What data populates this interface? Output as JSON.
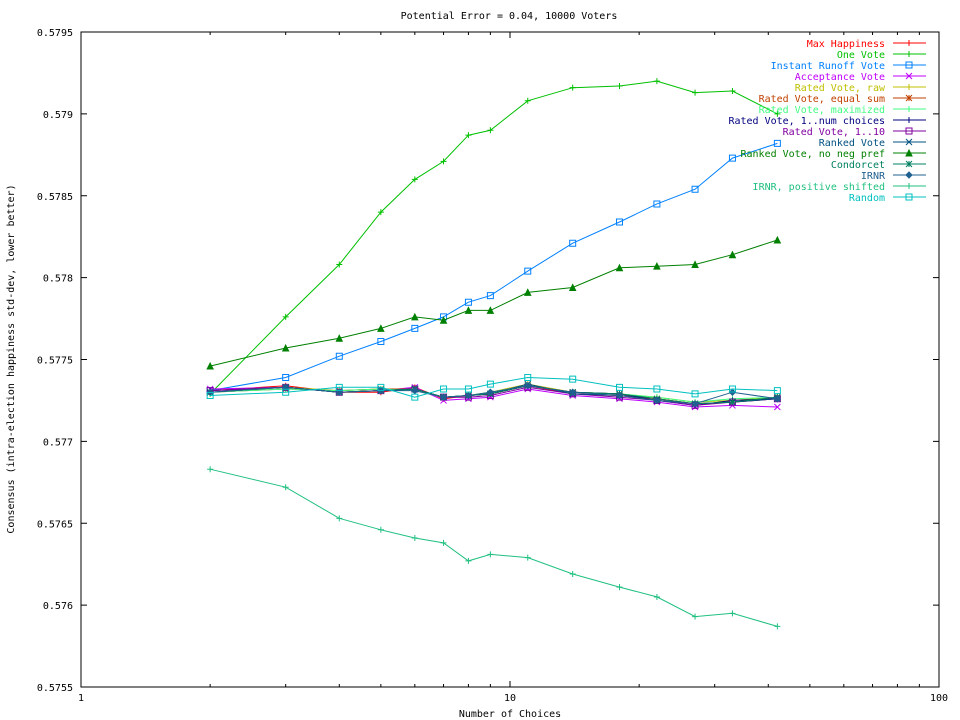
{
  "chart_data": {
    "type": "line",
    "title": "Potential Error = 0.04, 10000 Voters",
    "xlabel": "Number of Choices",
    "ylabel": "Consensus (intra-election happiness std-dev, lower better)",
    "xscale": "log",
    "xlim": [
      1,
      100
    ],
    "ylim": [
      0.5755,
      0.5795
    ],
    "x_ticks": [
      1,
      10,
      100
    ],
    "y_ticks": [
      0.5755,
      0.576,
      0.5765,
      0.577,
      0.5775,
      0.578,
      0.5785,
      0.579,
      0.5795
    ],
    "y_tick_labels": [
      "0.5755",
      "0.576",
      "0.5765",
      "0.577",
      "0.5775",
      "0.578",
      "0.5785",
      "0.579",
      "0.5795"
    ],
    "x_tick_labels": [
      "1",
      "10",
      "100"
    ],
    "grid": false,
    "legend_position": "top-right",
    "x": [
      2,
      3,
      4,
      5,
      6,
      7,
      8,
      9,
      11,
      14,
      18,
      22,
      27,
      33,
      42
    ],
    "series": [
      {
        "name": "Max Happiness",
        "color": "#ff0000",
        "marker": "plus",
        "values": [
          0.57731,
          0.57734,
          0.5773,
          0.5773,
          0.57733,
          0.57726,
          0.57728,
          0.57729,
          0.57734,
          0.57729,
          0.57728,
          0.57726,
          0.57723,
          0.57724,
          0.57726
        ]
      },
      {
        "name": "One Vote",
        "color": "#00c000",
        "marker": "plus",
        "values": [
          0.57729,
          0.57776,
          0.57808,
          0.5784,
          0.5786,
          0.57871,
          0.57887,
          0.5789,
          0.57908,
          0.57916,
          0.57917,
          0.5792,
          0.57913,
          0.57914,
          0.579
        ]
      },
      {
        "name": "Instant Runoff Vote",
        "color": "#0080ff",
        "marker": "square",
        "values": [
          0.57731,
          0.57739,
          0.57752,
          0.57761,
          0.57769,
          0.57776,
          0.57785,
          0.57789,
          0.57804,
          0.57821,
          0.57834,
          0.57845,
          0.57854,
          0.57873,
          0.57882
        ]
      },
      {
        "name": "Acceptance Vote",
        "color": "#c000ff",
        "marker": "x",
        "values": [
          0.57732,
          0.57733,
          0.5773,
          0.57731,
          0.57733,
          0.57725,
          0.57726,
          0.57727,
          0.57732,
          0.57728,
          0.57726,
          0.57724,
          0.57721,
          0.57722,
          0.57721
        ]
      },
      {
        "name": "Rated Vote, raw",
        "color": "#c0c000",
        "marker": "plus",
        "values": [
          0.57731,
          0.57733,
          0.57731,
          0.57732,
          0.57732,
          0.57727,
          0.57728,
          0.5773,
          0.57735,
          0.5773,
          0.57729,
          0.57727,
          0.57724,
          0.57725,
          0.57727
        ]
      },
      {
        "name": "Rated Vote, equal sum",
        "color": "#c04000",
        "marker": "star",
        "values": [
          0.5773,
          0.57732,
          0.57731,
          0.57732,
          0.57732,
          0.57727,
          0.57728,
          0.57729,
          0.57734,
          0.5773,
          0.57729,
          0.57726,
          0.57723,
          0.57724,
          0.57727
        ]
      },
      {
        "name": "Rated Vote, maximized",
        "color": "#40ff80",
        "marker": "plus",
        "values": [
          0.5773,
          0.57732,
          0.57731,
          0.57732,
          0.57731,
          0.57727,
          0.57728,
          0.5773,
          0.57734,
          0.5773,
          0.57729,
          0.57727,
          0.57724,
          0.57726,
          0.57727
        ]
      },
      {
        "name": "Rated Vote, 1..num choices",
        "color": "#000080",
        "marker": "plus",
        "values": [
          0.57731,
          0.57733,
          0.5773,
          0.57731,
          0.57732,
          0.57727,
          0.57728,
          0.57729,
          0.57734,
          0.5773,
          0.57729,
          0.57725,
          0.57722,
          0.57725,
          0.57726
        ]
      },
      {
        "name": "Rated Vote, 1..10",
        "color": "#8000a0",
        "marker": "square",
        "values": [
          0.57731,
          0.57733,
          0.5773,
          0.57731,
          0.57732,
          0.57727,
          0.57727,
          0.57728,
          0.57733,
          0.57729,
          0.57727,
          0.57725,
          0.57722,
          0.57724,
          0.57726
        ]
      },
      {
        "name": "Ranked Vote",
        "color": "#005080",
        "marker": "x",
        "values": [
          0.5773,
          0.57733,
          0.5773,
          0.57731,
          0.57732,
          0.57727,
          0.57728,
          0.57729,
          0.57735,
          0.57729,
          0.57728,
          0.57725,
          0.57723,
          0.57724,
          0.57726
        ]
      },
      {
        "name": "Ranked Vote, no neg pref",
        "color": "#008000",
        "marker": "triangle",
        "values": [
          0.57746,
          0.57757,
          0.57763,
          0.57769,
          0.57776,
          0.57774,
          0.5778,
          0.5778,
          0.57791,
          0.57794,
          0.57806,
          0.57807,
          0.57808,
          0.57814,
          0.57823
        ]
      },
      {
        "name": "Condorcet",
        "color": "#008060",
        "marker": "star",
        "values": [
          0.5773,
          0.57733,
          0.5773,
          0.57731,
          0.57732,
          0.57727,
          0.57728,
          0.57729,
          0.57734,
          0.5773,
          0.57729,
          0.57726,
          0.57723,
          0.57724,
          0.57727
        ]
      },
      {
        "name": "IRNR",
        "color": "#206090",
        "marker": "diamond",
        "values": [
          0.5773,
          0.57733,
          0.5773,
          0.57731,
          0.57731,
          0.57727,
          0.57728,
          0.5773,
          0.57734,
          0.5773,
          0.57728,
          0.57725,
          0.57723,
          0.5773,
          0.57726
        ]
      },
      {
        "name": "IRNR, positive shifted",
        "color": "#20c080",
        "marker": "plus",
        "values": [
          0.57683,
          0.57672,
          0.57653,
          0.57646,
          0.57641,
          0.57638,
          0.57627,
          0.57631,
          0.57629,
          0.57619,
          0.57611,
          0.57605,
          0.57593,
          0.57595,
          0.57587
        ]
      },
      {
        "name": "Random",
        "color": "#00c0c0",
        "marker": "square",
        "values": [
          0.57728,
          0.5773,
          0.57733,
          0.57733,
          0.57727,
          0.57732,
          0.57732,
          0.57735,
          0.57739,
          0.57738,
          0.57733,
          0.57732,
          0.57729,
          0.57732,
          0.57731
        ]
      }
    ]
  }
}
